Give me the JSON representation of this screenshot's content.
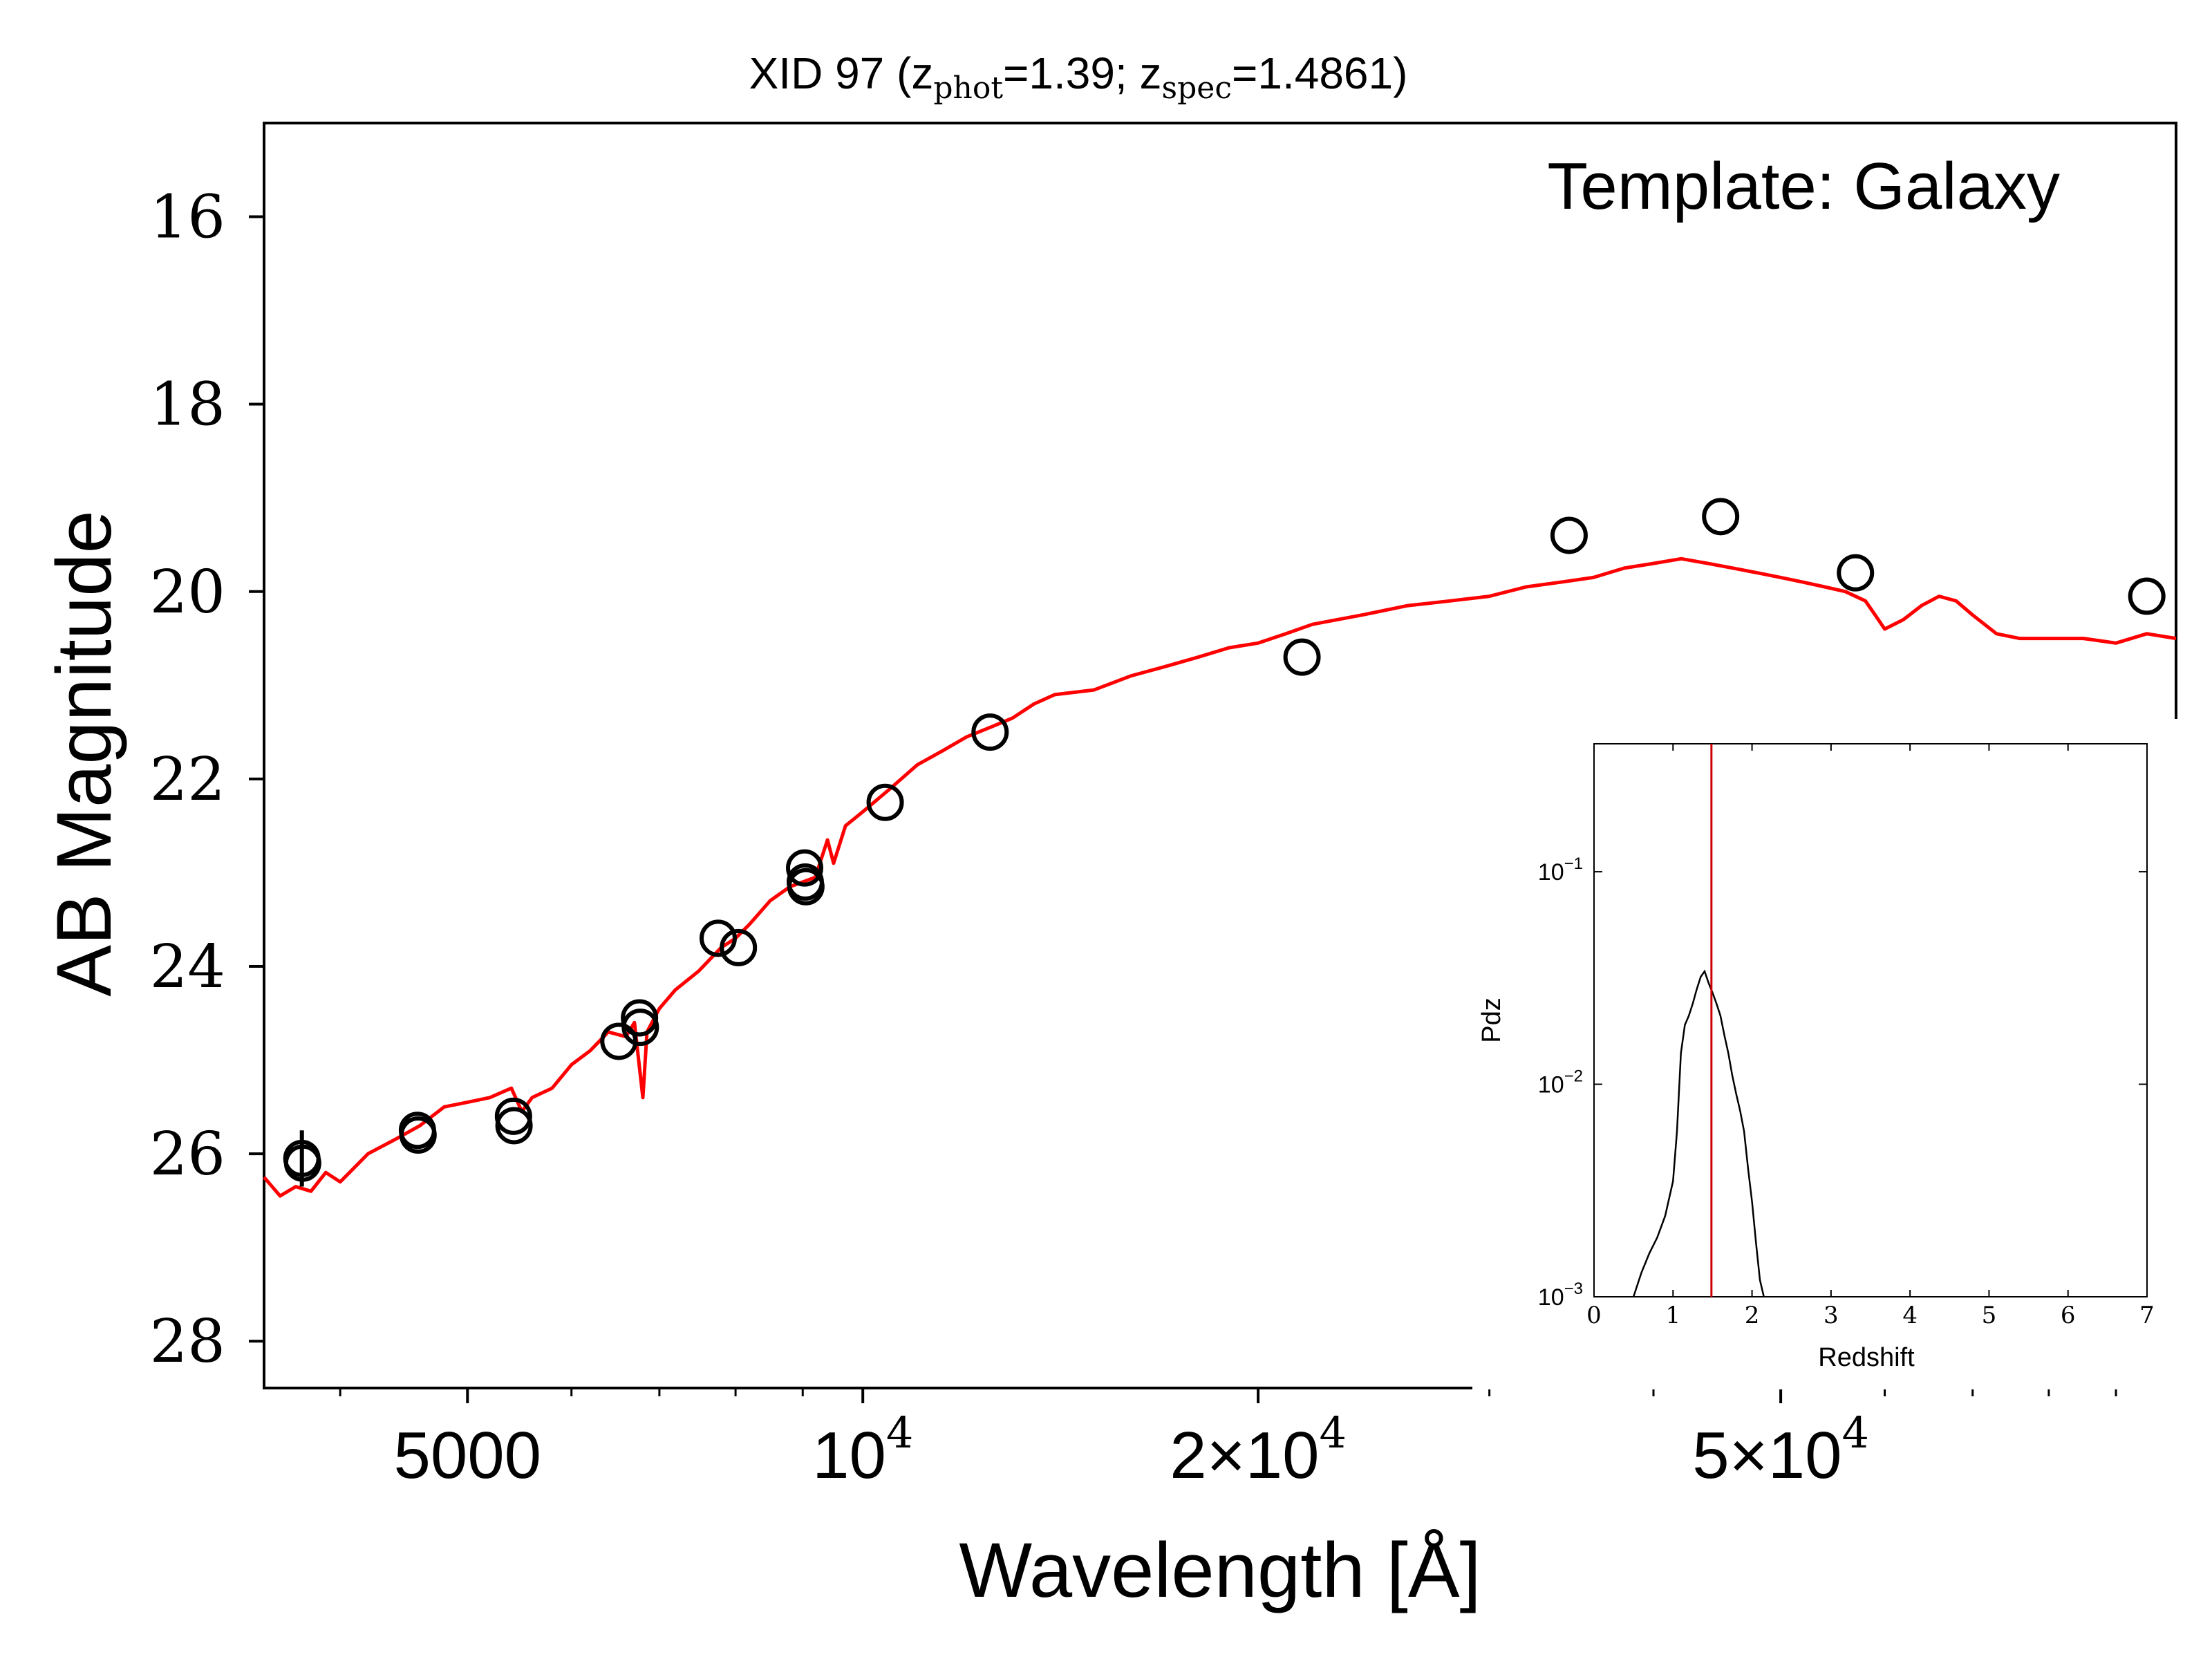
{
  "title": {
    "prefix": "XID 97 (z",
    "sub1": "phot",
    "mid": "=1.39; z",
    "sub2": "spec",
    "suffix": "=1.4861)"
  },
  "annotation": "Template: Galaxy",
  "chart_data": [
    {
      "type": "scatter",
      "xlabel": "Wavelength [Å]",
      "ylabel": "AB Magnitude",
      "xscale": "log",
      "xlim": [
        3500,
        100000
      ],
      "ylim": [
        28.5,
        15
      ],
      "y_inverted": true,
      "yticks": [
        16,
        18,
        20,
        22,
        24,
        26,
        28
      ],
      "xticks": [
        {
          "value": 5000,
          "label": "5000"
        },
        {
          "value": 10000,
          "label": "10",
          "sup": "4"
        },
        {
          "value": 20000,
          "label": "2×10",
          "sup": "4"
        },
        {
          "value": 50000,
          "label": "5×10",
          "sup": "4"
        }
      ],
      "series": [
        {
          "kind": "line",
          "color": "#ff0000",
          "points": [
            [
              3500,
              26.25
            ],
            [
              3600,
              26.45
            ],
            [
              3700,
              26.35
            ],
            [
              3800,
              26.4
            ],
            [
              3900,
              26.2
            ],
            [
              4000,
              26.3
            ],
            [
              4200,
              26.0
            ],
            [
              4400,
              25.85
            ],
            [
              4600,
              25.7
            ],
            [
              4800,
              25.5
            ],
            [
              5000,
              25.45
            ],
            [
              5200,
              25.4
            ],
            [
              5400,
              25.3
            ],
            [
              5500,
              25.55
            ],
            [
              5600,
              25.4
            ],
            [
              5800,
              25.3
            ],
            [
              6000,
              25.05
            ],
            [
              6200,
              24.9
            ],
            [
              6400,
              24.7
            ],
            [
              6600,
              24.75
            ],
            [
              6700,
              24.6
            ],
            [
              6800,
              25.4
            ],
            [
              6850,
              24.7
            ],
            [
              7000,
              24.45
            ],
            [
              7200,
              24.25
            ],
            [
              7500,
              24.05
            ],
            [
              7800,
              23.8
            ],
            [
              8000,
              23.7
            ],
            [
              8200,
              23.55
            ],
            [
              8500,
              23.3
            ],
            [
              8800,
              23.15
            ],
            [
              9000,
              23.1
            ],
            [
              9200,
              23.05
            ],
            [
              9400,
              22.65
            ],
            [
              9500,
              22.9
            ],
            [
              9700,
              22.5
            ],
            [
              10000,
              22.35
            ],
            [
              10500,
              22.1
            ],
            [
              11000,
              21.85
            ],
            [
              11500,
              21.7
            ],
            [
              12000,
              21.55
            ],
            [
              12500,
              21.45
            ],
            [
              13000,
              21.35
            ],
            [
              13500,
              21.2
            ],
            [
              14000,
              21.1
            ],
            [
              15000,
              21.05
            ],
            [
              16000,
              20.9
            ],
            [
              17000,
              20.8
            ],
            [
              18000,
              20.7
            ],
            [
              19000,
              20.6
            ],
            [
              20000,
              20.55
            ],
            [
              21000,
              20.45
            ],
            [
              22000,
              20.35
            ],
            [
              24000,
              20.25
            ],
            [
              26000,
              20.15
            ],
            [
              28000,
              20.1
            ],
            [
              30000,
              20.05
            ],
            [
              32000,
              19.95
            ],
            [
              34000,
              19.9
            ],
            [
              36000,
              19.85
            ],
            [
              38000,
              19.75
            ],
            [
              40000,
              19.7
            ],
            [
              42000,
              19.65
            ],
            [
              44000,
              19.7
            ],
            [
              46000,
              19.75
            ],
            [
              48000,
              19.8
            ],
            [
              50000,
              19.85
            ],
            [
              52000,
              19.9
            ],
            [
              54000,
              19.95
            ],
            [
              56000,
              20.0
            ],
            [
              58000,
              20.1
            ],
            [
              59000,
              20.25
            ],
            [
              60000,
              20.4
            ],
            [
              62000,
              20.3
            ],
            [
              64000,
              20.15
            ],
            [
              66000,
              20.05
            ],
            [
              68000,
              20.1
            ],
            [
              70000,
              20.25
            ],
            [
              73000,
              20.45
            ],
            [
              76000,
              20.5
            ],
            [
              80000,
              20.5
            ],
            [
              85000,
              20.5
            ],
            [
              90000,
              20.55
            ],
            [
              95000,
              20.45
            ],
            [
              100000,
              20.5
            ]
          ]
        },
        {
          "kind": "points",
          "marker": "open-circle",
          "color": "#000000",
          "points": [
            [
              3740,
              26.05
            ],
            [
              3745,
              26.1
            ],
            [
              4580,
              25.75
            ],
            [
              4585,
              25.8
            ],
            [
              5420,
              25.6
            ],
            [
              5425,
              25.7
            ],
            [
              6520,
              24.8
            ],
            [
              6760,
              24.55
            ],
            [
              6770,
              24.65
            ],
            [
              7760,
              23.7
            ],
            [
              8040,
              23.8
            ],
            [
              9030,
              22.95
            ],
            [
              9040,
              23.1
            ],
            [
              9050,
              23.15
            ],
            [
              10400,
              22.25
            ],
            [
              12500,
              21.5
            ],
            [
              21600,
              20.7
            ],
            [
              34500,
              19.4
            ],
            [
              45000,
              19.2
            ],
            [
              57000,
              19.8
            ],
            [
              95000,
              20.05
            ]
          ],
          "errorbars": [
            {
              "x": 3740,
              "ylow": 25.75,
              "yhigh": 26.35
            }
          ]
        }
      ]
    },
    {
      "type": "line",
      "xlabel": "Redshift",
      "ylabel": "Pdz",
      "yscale": "log",
      "xlim": [
        0,
        7
      ],
      "ylim": [
        0.001,
        0.4
      ],
      "xticks": [
        "0",
        "1",
        "2",
        "3",
        "4",
        "5",
        "6",
        "7"
      ],
      "yticks": [
        {
          "value": 0.1,
          "base": "10",
          "exp": "−1"
        },
        {
          "value": 0.01,
          "base": "10",
          "exp": "−2"
        },
        {
          "value": 0.001,
          "base": "10",
          "exp": "−3"
        }
      ],
      "series": [
        {
          "kind": "line",
          "color": "#000000",
          "points": [
            [
              0.5,
              0.001
            ],
            [
              0.6,
              0.0013
            ],
            [
              0.7,
              0.0016
            ],
            [
              0.8,
              0.0019
            ],
            [
              0.9,
              0.0024
            ],
            [
              1.0,
              0.0035
            ],
            [
              1.05,
              0.006
            ],
            [
              1.1,
              0.014
            ],
            [
              1.15,
              0.019
            ],
            [
              1.2,
              0.021
            ],
            [
              1.25,
              0.024
            ],
            [
              1.3,
              0.028
            ],
            [
              1.35,
              0.032
            ],
            [
              1.4,
              0.034
            ],
            [
              1.45,
              0.03
            ],
            [
              1.5,
              0.027
            ],
            [
              1.55,
              0.024
            ],
            [
              1.6,
              0.021
            ],
            [
              1.65,
              0.017
            ],
            [
              1.7,
              0.014
            ],
            [
              1.75,
              0.011
            ],
            [
              1.8,
              0.009
            ],
            [
              1.85,
              0.0075
            ],
            [
              1.9,
              0.006
            ],
            [
              1.95,
              0.004
            ],
            [
              2.0,
              0.0028
            ],
            [
              2.05,
              0.0018
            ],
            [
              2.1,
              0.0012
            ],
            [
              2.15,
              0.001
            ]
          ]
        },
        {
          "kind": "vline",
          "color": "#cc0000",
          "x": 1.4861
        }
      ]
    }
  ]
}
